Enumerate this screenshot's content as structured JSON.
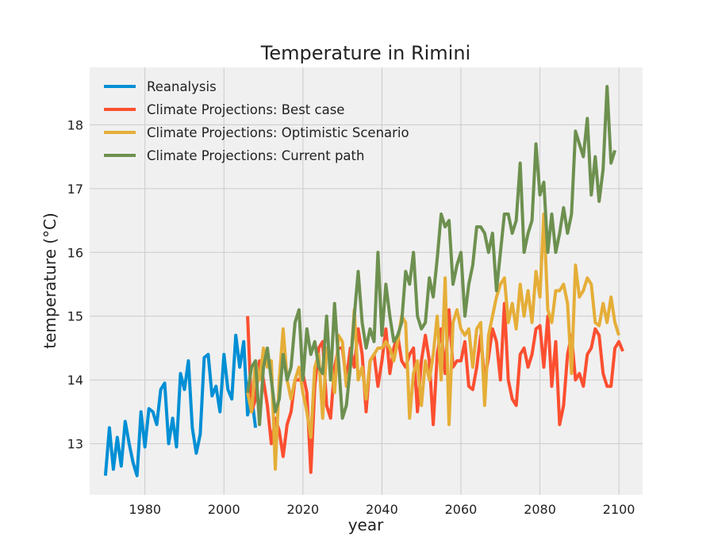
{
  "chart_data": {
    "type": "line",
    "title": "Temperature in Rimini",
    "xlabel": "year",
    "ylabel": "temperature (°C)",
    "xlim": [
      1966,
      2106
    ],
    "ylim": [
      12.2,
      18.9
    ],
    "x_ticks": [
      1980,
      2000,
      2020,
      2040,
      2060,
      2080,
      2100
    ],
    "y_ticks": [
      13,
      14,
      15,
      16,
      17,
      18
    ],
    "grid": true,
    "legend_position": "top-left",
    "background": "#f0f0f0",
    "series": [
      {
        "name": "Reanalysis",
        "color": "#008fd5",
        "x_start": 1970,
        "values": [
          12.5,
          13.25,
          12.6,
          13.1,
          12.65,
          13.35,
          13.0,
          12.7,
          12.5,
          13.5,
          12.95,
          13.55,
          13.5,
          13.3,
          13.85,
          13.95,
          13.0,
          13.4,
          12.95,
          14.1,
          13.85,
          14.3,
          13.25,
          12.85,
          13.15,
          14.35,
          14.4,
          13.75,
          13.9,
          13.5,
          14.4,
          13.85,
          13.7,
          14.7,
          14.2,
          14.6,
          13.45,
          13.75,
          13.25
        ]
      },
      {
        "name": "Climate Projections: Best case",
        "color": "#fc4f30",
        "x_start": 2006,
        "values": [
          15.0,
          13.5,
          13.7,
          14.3,
          14.0,
          13.6,
          13.0,
          13.4,
          13.2,
          12.8,
          13.3,
          13.5,
          14.0,
          14.0,
          14.1,
          13.8,
          12.55,
          13.9,
          14.5,
          14.6,
          13.6,
          13.4,
          14.2,
          14.5,
          14.5,
          14.0,
          14.5,
          14.2,
          14.8,
          14.4,
          13.5,
          14.3,
          14.4,
          13.9,
          14.3,
          14.8,
          14.1,
          14.5,
          14.7,
          14.3,
          14.2,
          14.4,
          14.5,
          13.5,
          14.3,
          14.7,
          14.3,
          13.3,
          14.4,
          14.8,
          14.1,
          15.1,
          14.2,
          14.3,
          14.3,
          14.6,
          13.9,
          13.85,
          14.2,
          14.7,
          14.0,
          14.35,
          14.8,
          14.6,
          14.0,
          15.2,
          14.0,
          13.7,
          13.6,
          14.4,
          14.5,
          14.2,
          14.4,
          14.8,
          14.85,
          14.2,
          15.0,
          13.9,
          14.6,
          13.3,
          13.6,
          14.4,
          14.7,
          14.0,
          14.1,
          13.9,
          14.4,
          14.5,
          14.8,
          14.7,
          14.1,
          13.9,
          13.9,
          14.5,
          14.6,
          14.45
        ]
      },
      {
        "name": "Climate Projections: Optimistic Scenario",
        "color": "#e5ae38",
        "x_start": 2006,
        "values": [
          13.8,
          13.5,
          14.3,
          14.0,
          14.5,
          14.2,
          14.3,
          12.6,
          14.0,
          14.8,
          14.0,
          13.7,
          14.0,
          14.2,
          13.8,
          13.5,
          13.1,
          14.2,
          14.4,
          13.4,
          14.5,
          14.3,
          13.8,
          14.7,
          14.6,
          13.9,
          14.2,
          15.1,
          14.0,
          14.2,
          13.7,
          14.3,
          14.4,
          14.5,
          14.5,
          14.6,
          14.5,
          14.3,
          14.6,
          15.0,
          14.9,
          13.4,
          14.1,
          14.3,
          13.6,
          14.3,
          14.0,
          14.4,
          15.0,
          14.0,
          15.6,
          13.3,
          14.9,
          15.1,
          14.8,
          14.7,
          14.8,
          14.2,
          14.8,
          14.9,
          13.6,
          14.7,
          15.0,
          15.3,
          15.5,
          15.6,
          14.9,
          15.2,
          14.8,
          15.5,
          15.0,
          15.4,
          14.9,
          15.7,
          15.3,
          16.6,
          15.1,
          14.9,
          15.4,
          15.4,
          15.5,
          15.2,
          14.1,
          15.8,
          15.3,
          15.4,
          15.6,
          15.5,
          14.9,
          14.85,
          15.2,
          14.9,
          15.3,
          14.9,
          14.7
        ]
      },
      {
        "name": "Climate Projections: Current path",
        "color": "#6d904f",
        "x_start": 2006,
        "values": [
          13.8,
          14.2,
          14.3,
          13.3,
          14.2,
          14.5,
          14.0,
          13.5,
          13.7,
          14.4,
          14.0,
          14.2,
          14.9,
          15.1,
          14.0,
          14.8,
          14.4,
          14.6,
          14.2,
          14.1,
          15.0,
          14.0,
          15.2,
          14.3,
          13.4,
          13.6,
          14.2,
          15.0,
          15.7,
          14.9,
          14.5,
          14.8,
          14.6,
          16.0,
          14.7,
          15.5,
          15.0,
          14.6,
          14.7,
          14.9,
          15.7,
          15.5,
          16.0,
          15.0,
          14.8,
          14.9,
          15.6,
          15.3,
          15.9,
          16.6,
          16.4,
          16.5,
          15.5,
          15.8,
          16.0,
          15.0,
          15.5,
          15.8,
          16.4,
          16.4,
          16.3,
          16.0,
          16.3,
          15.4,
          16.0,
          16.6,
          16.6,
          16.3,
          16.5,
          17.4,
          16.0,
          16.3,
          16.5,
          17.7,
          16.9,
          17.1,
          16.0,
          16.6,
          16.0,
          16.3,
          16.7,
          16.3,
          16.6,
          17.9,
          17.7,
          17.5,
          18.1,
          16.9,
          17.5,
          16.8,
          17.3,
          18.6,
          17.4,
          17.6
        ]
      }
    ]
  }
}
